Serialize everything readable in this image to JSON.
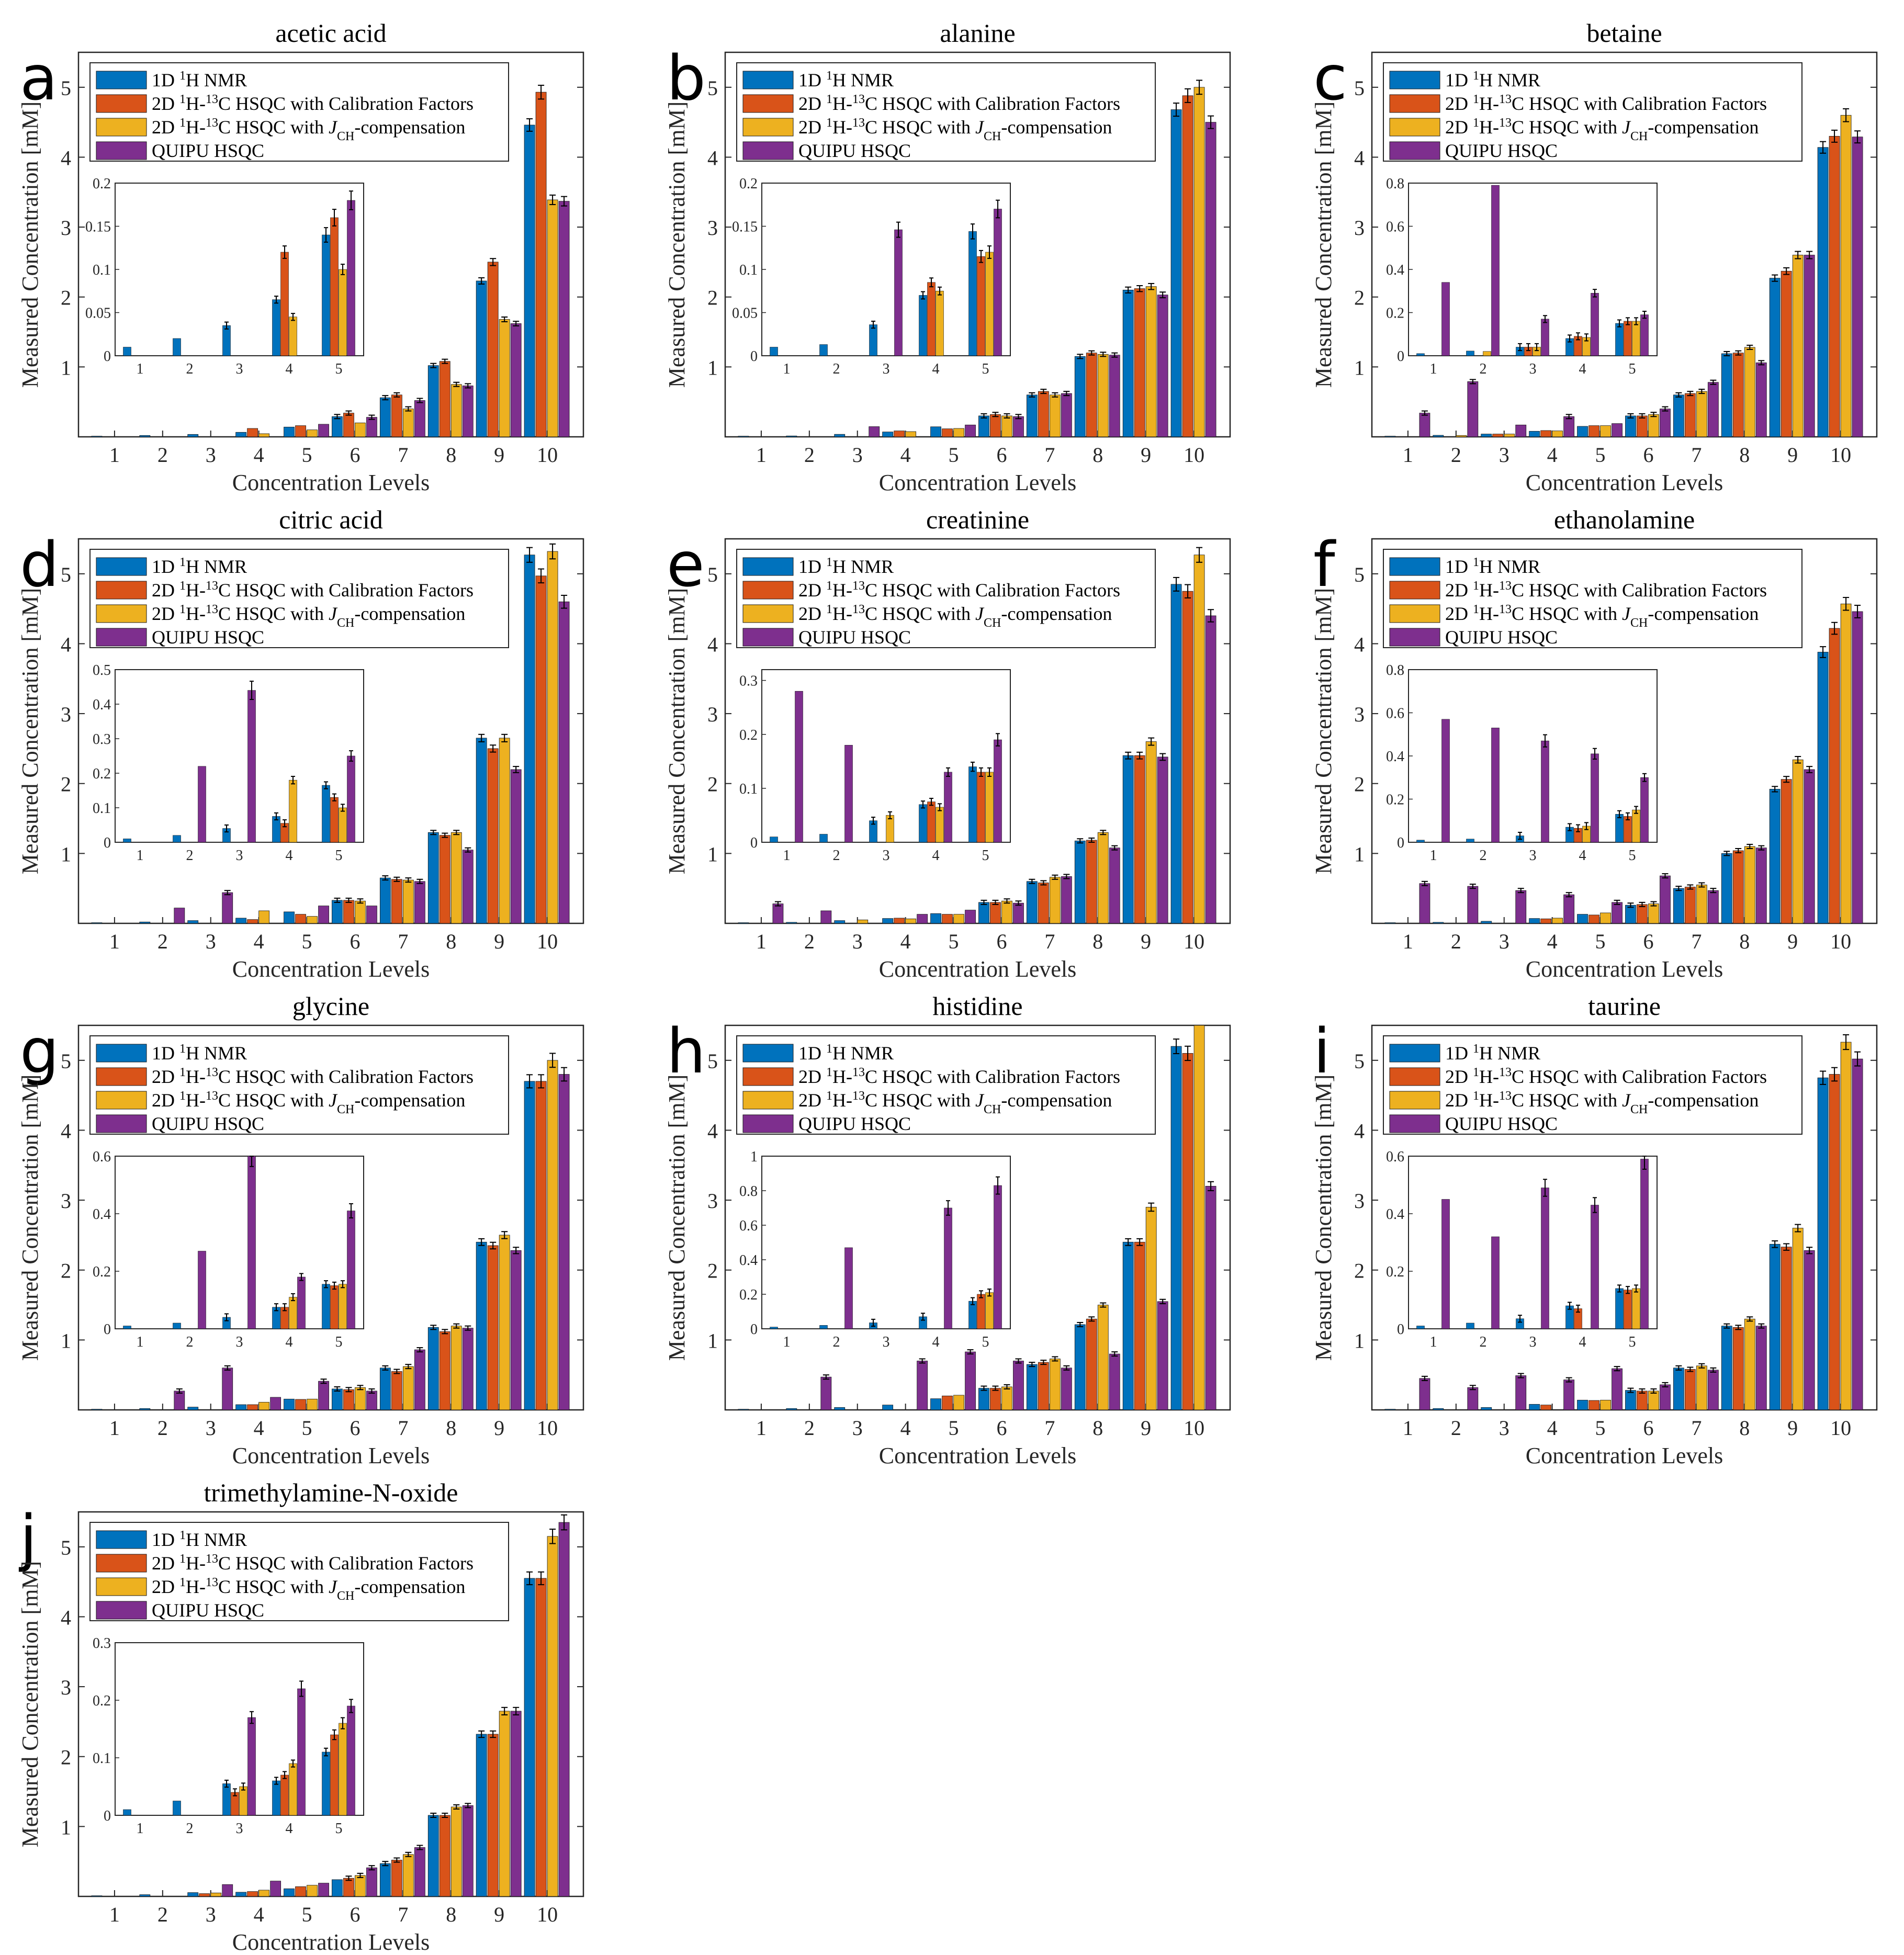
{
  "figure": {
    "xlabel": "Concentration Levels",
    "ylabel": "Measured Concentration [mM]",
    "series_names": [
      "1D 1H NMR",
      "2D 1H-13C HSQC with Calibration Factors",
      "2D 1H-13C HSQC with JCH-compensation",
      "QUIPU HSQC"
    ],
    "series_colors": [
      "#0072BD",
      "#D95319",
      "#EDB120",
      "#7E2F8E"
    ],
    "categories": [
      "1",
      "2",
      "3",
      "4",
      "5",
      "6",
      "7",
      "8",
      "9",
      "10"
    ],
    "inset_categories": [
      "1",
      "2",
      "3",
      "4",
      "5"
    ]
  },
  "chart_data": [
    {
      "type": "bar",
      "panel": "a",
      "title": "acetic acid",
      "ylim": [
        0,
        5.5
      ],
      "yticks": [
        1,
        2,
        3,
        4,
        5
      ],
      "series": [
        {
          "name": "1D 1H NMR",
          "values": [
            0.01,
            0.02,
            0.035,
            0.065,
            0.14,
            0.29,
            0.56,
            1.02,
            2.23,
            4.46
          ]
        },
        {
          "name": "2D 1H-13C HSQC with Calibration Factors",
          "values": [
            0,
            0,
            0,
            0.12,
            0.16,
            0.34,
            0.6,
            1.08,
            2.5,
            4.93
          ]
        },
        {
          "name": "2D 1H-13C HSQC with JCH-compensation",
          "values": [
            0,
            0,
            0,
            0.045,
            0.1,
            0.2,
            0.4,
            0.75,
            1.68,
            3.39
          ]
        },
        {
          "name": "QUIPU HSQC",
          "values": [
            0,
            0,
            0,
            0,
            0.18,
            0.28,
            0.52,
            0.73,
            1.62,
            3.37
          ]
        }
      ],
      "inset": {
        "ylim": [
          0,
          0.2
        ],
        "yticks": [
          "0",
          "0.05",
          "0.1",
          "0.15",
          "0.2"
        ],
        "tickvals": [
          0,
          0.05,
          0.1,
          0.15,
          0.2
        ]
      }
    },
    {
      "type": "bar",
      "panel": "b",
      "title": "alanine",
      "ylim": [
        0,
        5.5
      ],
      "yticks": [
        1,
        2,
        3,
        4,
        5
      ],
      "series": [
        {
          "name": "1D 1H NMR",
          "values": [
            0.01,
            0.013,
            0.036,
            0.07,
            0.144,
            0.3,
            0.6,
            1.15,
            2.1,
            4.68
          ]
        },
        {
          "name": "2D 1H-13C HSQC with Calibration Factors",
          "values": [
            0,
            0,
            0,
            0.085,
            0.115,
            0.32,
            0.65,
            1.2,
            2.12,
            4.88
          ]
        },
        {
          "name": "2D 1H-13C HSQC with JCH-compensation",
          "values": [
            0,
            0,
            0,
            0.075,
            0.12,
            0.3,
            0.6,
            1.18,
            2.15,
            5.0
          ]
        },
        {
          "name": "QUIPU HSQC",
          "values": [
            0,
            0,
            0.146,
            0,
            0.17,
            0.29,
            0.62,
            1.17,
            2.03,
            4.5
          ]
        }
      ],
      "inset": {
        "ylim": [
          0,
          0.2
        ],
        "yticks": [
          "0",
          "0.05",
          "0.1",
          "0.15",
          "0.2"
        ],
        "tickvals": [
          0,
          0.05,
          0.1,
          0.15,
          0.2
        ]
      }
    },
    {
      "type": "bar",
      "panel": "c",
      "title": "betaine",
      "ylim": [
        0,
        5.5
      ],
      "yticks": [
        1,
        2,
        3,
        4,
        5
      ],
      "series": [
        {
          "name": "1D 1H NMR",
          "values": [
            0.01,
            0.022,
            0.04,
            0.08,
            0.15,
            0.3,
            0.6,
            1.19,
            2.27,
            4.14
          ]
        },
        {
          "name": "2D 1H-13C HSQC with Calibration Factors",
          "values": [
            0,
            0,
            0.04,
            0.09,
            0.16,
            0.3,
            0.62,
            1.2,
            2.37,
            4.3
          ]
        },
        {
          "name": "2D 1H-13C HSQC with JCH-compensation",
          "values": [
            0,
            0.02,
            0.04,
            0.085,
            0.16,
            0.32,
            0.65,
            1.28,
            2.6,
            4.6
          ]
        },
        {
          "name": "QUIPU HSQC",
          "values": [
            0.34,
            0.79,
            0.17,
            0.29,
            0.19,
            0.4,
            0.78,
            1.06,
            2.6,
            4.29
          ]
        }
      ],
      "inset": {
        "ylim": [
          0,
          0.8
        ],
        "yticks": [
          "0",
          "0.2",
          "0.4",
          "0.6",
          "0.8"
        ],
        "tickvals": [
          0,
          0.2,
          0.4,
          0.6,
          0.8
        ]
      }
    },
    {
      "type": "bar",
      "panel": "d",
      "title": "citric acid",
      "ylim": [
        0,
        5.5
      ],
      "yticks": [
        1,
        2,
        3,
        4,
        5
      ],
      "series": [
        {
          "name": "1D 1H NMR",
          "values": [
            0.01,
            0.02,
            0.04,
            0.075,
            0.165,
            0.33,
            0.65,
            1.3,
            2.65,
            5.27
          ]
        },
        {
          "name": "2D 1H-13C HSQC with Calibration Factors",
          "values": [
            0,
            0,
            0,
            0.055,
            0.13,
            0.33,
            0.63,
            1.26,
            2.5,
            4.97
          ]
        },
        {
          "name": "2D 1H-13C HSQC with JCH-compensation",
          "values": [
            0,
            0,
            0,
            0.18,
            0.1,
            0.32,
            0.62,
            1.3,
            2.65,
            5.32
          ]
        },
        {
          "name": "QUIPU HSQC",
          "values": [
            0,
            0.22,
            0.44,
            0,
            0.25,
            0.25,
            0.6,
            1.05,
            2.2,
            4.6
          ]
        }
      ],
      "inset": {
        "ylim": [
          0,
          0.5
        ],
        "yticks": [
          "0",
          "0.1",
          "0.2",
          "0.3",
          "0.4",
          "0.5"
        ],
        "tickvals": [
          0,
          0.1,
          0.2,
          0.3,
          0.4,
          0.5
        ]
      }
    },
    {
      "type": "bar",
      "panel": "e",
      "title": "creatinine",
      "ylim": [
        0,
        5.5
      ],
      "yticks": [
        1,
        2,
        3,
        4,
        5
      ],
      "series": [
        {
          "name": "1D 1H NMR",
          "values": [
            0.01,
            0.015,
            0.04,
            0.07,
            0.14,
            0.3,
            0.6,
            1.18,
            2.4,
            4.85
          ]
        },
        {
          "name": "2D 1H-13C HSQC with Calibration Factors",
          "values": [
            0,
            0,
            0,
            0.075,
            0.13,
            0.3,
            0.58,
            1.19,
            2.4,
            4.75
          ]
        },
        {
          "name": "2D 1H-13C HSQC with JCH-compensation",
          "values": [
            0,
            0,
            0.05,
            0.065,
            0.13,
            0.32,
            0.66,
            1.3,
            2.6,
            5.27
          ]
        },
        {
          "name": "QUIPU HSQC",
          "values": [
            0.28,
            0.18,
            0,
            0.13,
            0.19,
            0.29,
            0.67,
            1.08,
            2.38,
            4.4
          ]
        }
      ],
      "inset": {
        "ylim": [
          0,
          0.32
        ],
        "yticks": [
          "0",
          "0.1",
          "0.2",
          "0.3"
        ],
        "tickvals": [
          0,
          0.1,
          0.2,
          0.3
        ]
      }
    },
    {
      "type": "bar",
      "panel": "f",
      "title": "ethanolamine",
      "ylim": [
        0,
        5.5
      ],
      "yticks": [
        1,
        2,
        3,
        4,
        5
      ],
      "series": [
        {
          "name": "1D 1H NMR",
          "values": [
            0.01,
            0.015,
            0.03,
            0.07,
            0.13,
            0.26,
            0.5,
            1.0,
            1.92,
            3.88
          ]
        },
        {
          "name": "2D 1H-13C HSQC with Calibration Factors",
          "values": [
            0,
            0,
            0,
            0.065,
            0.12,
            0.27,
            0.52,
            1.04,
            2.06,
            4.22
          ]
        },
        {
          "name": "2D 1H-13C HSQC with JCH-compensation",
          "values": [
            0,
            0,
            0,
            0.075,
            0.15,
            0.28,
            0.55,
            1.1,
            2.34,
            4.57
          ]
        },
        {
          "name": "QUIPU HSQC",
          "values": [
            0.57,
            0.53,
            0.47,
            0.41,
            0.3,
            0.68,
            0.47,
            1.08,
            2.2,
            4.46
          ]
        }
      ],
      "inset": {
        "ylim": [
          0,
          0.8
        ],
        "yticks": [
          "0",
          "0.2",
          "0.4",
          "0.6",
          "0.8"
        ],
        "tickvals": [
          0,
          0.2,
          0.4,
          0.6,
          0.8
        ]
      }
    },
    {
      "type": "bar",
      "panel": "g",
      "title": "glycine",
      "ylim": [
        0,
        5.5
      ],
      "yticks": [
        1,
        2,
        3,
        4,
        5
      ],
      "series": [
        {
          "name": "1D 1H NMR",
          "values": [
            0.01,
            0.02,
            0.04,
            0.075,
            0.155,
            0.3,
            0.6,
            1.18,
            2.4,
            4.7
          ]
        },
        {
          "name": "2D 1H-13C HSQC with Calibration Factors",
          "values": [
            0,
            0,
            0,
            0.075,
            0.15,
            0.29,
            0.55,
            1.12,
            2.35,
            4.7
          ]
        },
        {
          "name": "2D 1H-13C HSQC with JCH-compensation",
          "values": [
            0,
            0,
            0,
            0.11,
            0.155,
            0.32,
            0.62,
            1.2,
            2.5,
            5.0
          ]
        },
        {
          "name": "QUIPU HSQC",
          "values": [
            0,
            0.27,
            0.6,
            0.18,
            0.41,
            0.27,
            0.86,
            1.17,
            2.28,
            4.8
          ]
        }
      ],
      "inset": {
        "ylim": [
          0,
          0.6
        ],
        "yticks": [
          "0",
          "0.2",
          "0.4",
          "0.6"
        ],
        "tickvals": [
          0,
          0.2,
          0.4,
          0.6
        ]
      }
    },
    {
      "type": "bar",
      "panel": "h",
      "title": "histidine",
      "ylim": [
        0,
        5.5
      ],
      "yticks": [
        1,
        2,
        3,
        4,
        5
      ],
      "series": [
        {
          "name": "1D 1H NMR",
          "values": [
            0.01,
            0.02,
            0.035,
            0.07,
            0.16,
            0.31,
            0.65,
            1.22,
            2.4,
            5.2
          ]
        },
        {
          "name": "2D 1H-13C HSQC with Calibration Factors",
          "values": [
            0,
            0,
            0,
            0,
            0.2,
            0.31,
            0.68,
            1.3,
            2.4,
            5.1
          ]
        },
        {
          "name": "2D 1H-13C HSQC with JCH-compensation",
          "values": [
            0,
            0,
            0,
            0,
            0.21,
            0.33,
            0.73,
            1.5,
            2.9,
            5.6
          ]
        },
        {
          "name": "QUIPU HSQC",
          "values": [
            0,
            0.47,
            0,
            0.7,
            0.83,
            0.7,
            0.6,
            0.8,
            1.55,
            3.2
          ]
        }
      ],
      "inset": {
        "ylim": [
          0,
          1.0
        ],
        "yticks": [
          "0",
          "0.2",
          "0.4",
          "0.6",
          "0.8",
          "1"
        ],
        "tickvals": [
          0,
          0.2,
          0.4,
          0.6,
          0.8,
          1.0
        ]
      }
    },
    {
      "type": "bar",
      "panel": "i",
      "title": "taurine",
      "ylim": [
        0,
        5.5
      ],
      "yticks": [
        1,
        2,
        3,
        4,
        5
      ],
      "series": [
        {
          "name": "1D 1H NMR",
          "values": [
            0.01,
            0.02,
            0.035,
            0.08,
            0.14,
            0.28,
            0.6,
            1.2,
            2.37,
            4.75
          ]
        },
        {
          "name": "2D 1H-13C HSQC with Calibration Factors",
          "values": [
            0,
            0,
            0,
            0.07,
            0.135,
            0.27,
            0.58,
            1.18,
            2.33,
            4.8
          ]
        },
        {
          "name": "2D 1H-13C HSQC with JCH-compensation",
          "values": [
            0,
            0,
            0,
            0,
            0.14,
            0.27,
            0.63,
            1.3,
            2.6,
            5.26
          ]
        },
        {
          "name": "QUIPU HSQC",
          "values": [
            0.45,
            0.32,
            0.49,
            0.43,
            0.59,
            0.36,
            0.57,
            1.2,
            2.28,
            5.02
          ]
        }
      ],
      "inset": {
        "ylim": [
          0,
          0.6
        ],
        "yticks": [
          "0",
          "0.2",
          "0.4",
          "0.6"
        ],
        "tickvals": [
          0,
          0.2,
          0.4,
          0.6
        ]
      }
    },
    {
      "type": "bar",
      "panel": "j",
      "title": "trimethylamine-N-oxide",
      "ylim": [
        0,
        5.5
      ],
      "yticks": [
        1,
        2,
        3,
        4,
        5
      ],
      "series": [
        {
          "name": "1D 1H NMR",
          "values": [
            0.01,
            0.025,
            0.055,
            0.06,
            0.11,
            0.24,
            0.47,
            1.16,
            2.32,
            4.55
          ]
        },
        {
          "name": "2D 1H-13C HSQC with Calibration Factors",
          "values": [
            0,
            0,
            0.04,
            0.07,
            0.14,
            0.26,
            0.52,
            1.16,
            2.32,
            4.55
          ]
        },
        {
          "name": "2D 1H-13C HSQC with JCH-compensation",
          "values": [
            0,
            0,
            0.05,
            0.09,
            0.16,
            0.3,
            0.6,
            1.28,
            2.65,
            5.15
          ]
        },
        {
          "name": "QUIPU HSQC",
          "values": [
            0,
            0,
            0.17,
            0.22,
            0.19,
            0.41,
            0.7,
            1.3,
            2.65,
            5.35
          ]
        }
      ],
      "inset": {
        "ylim": [
          0,
          0.3
        ],
        "yticks": [
          "0",
          "0.1",
          "0.2",
          "0.3"
        ],
        "tickvals": [
          0,
          0.1,
          0.2,
          0.3
        ]
      }
    }
  ]
}
